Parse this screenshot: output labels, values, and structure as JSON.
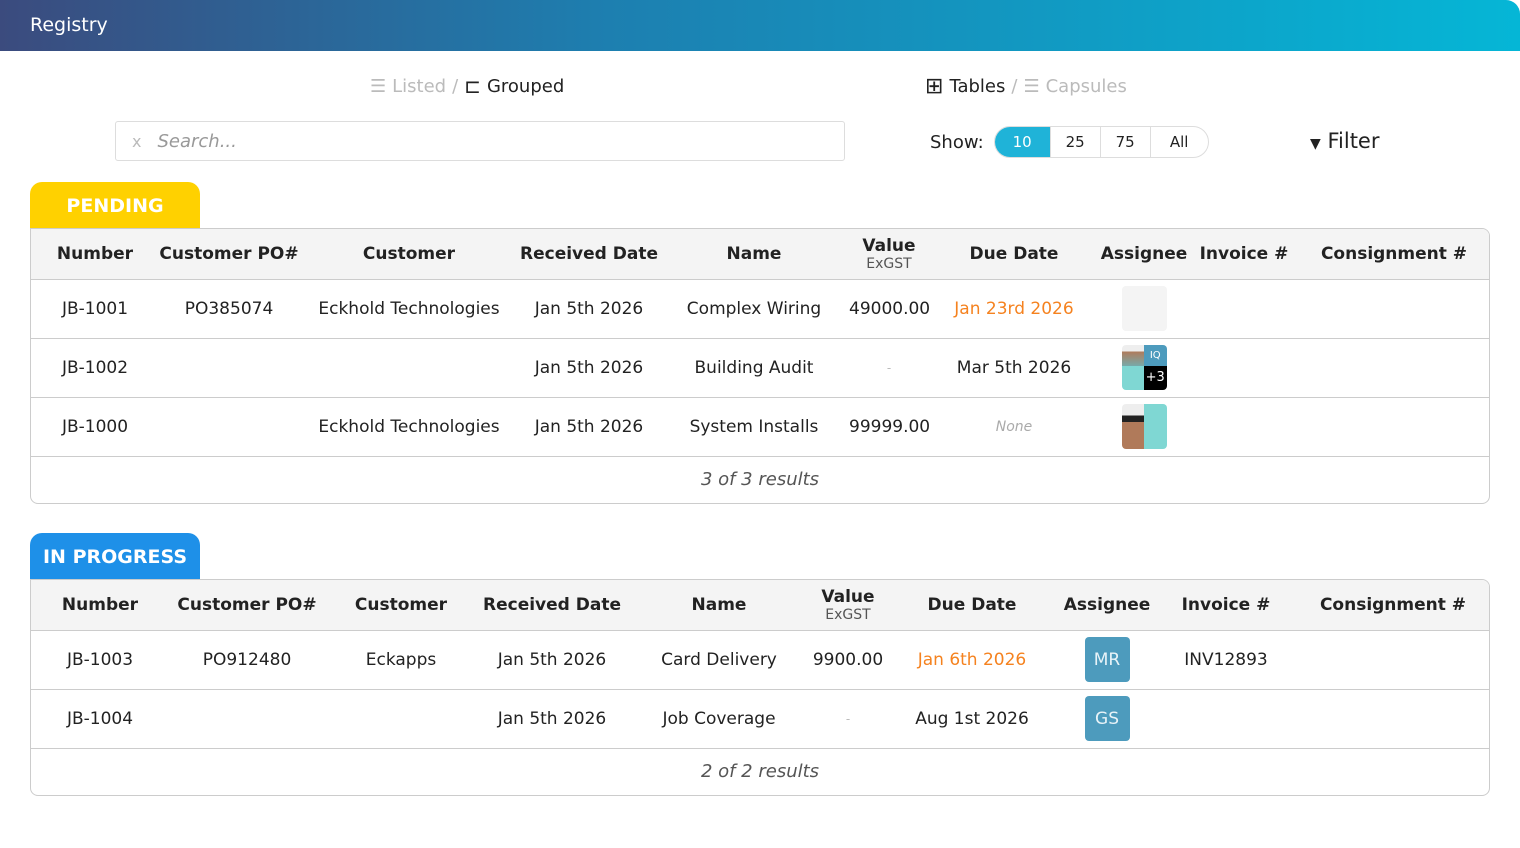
{
  "header": {
    "title": "Registry"
  },
  "view": {
    "listed": "Listed",
    "grouped": "Grouped",
    "tables": "Tables",
    "capsules": "Capsules",
    "sep": "/"
  },
  "search": {
    "clear": "x",
    "placeholder": "Search..."
  },
  "show": {
    "label": "Show:",
    "options": [
      "10",
      "25",
      "75",
      "All"
    ],
    "selected": "10"
  },
  "filter": {
    "label": "Filter",
    "icon": "▼"
  },
  "colors": {
    "accent": "#1fb3d8",
    "pending": "#ffd100",
    "in_progress": "#1e90e8",
    "overdue": "#f5821f"
  },
  "sections": [
    {
      "label": "PENDING",
      "columns": [
        "Number",
        "Customer PO#",
        "Customer",
        "Received Date",
        "Name",
        "Value",
        "Due Date",
        "Assignee",
        "Invoice #",
        "Consignment #"
      ],
      "value_sub": "ExGST",
      "rows": [
        {
          "number": "JB-1001",
          "po": "PO385074",
          "customer": "Eckhold Technologies",
          "received": "Jan 5th 2026",
          "name": "Complex Wiring",
          "value": "49000.00",
          "due": "Jan 23rd 2026",
          "invoice": "",
          "consignment": ""
        },
        {
          "number": "JB-1002",
          "po": "",
          "customer": "",
          "received": "Jan 5th 2026",
          "name": "Building Audit",
          "value": "-",
          "due": "Mar 5th 2026",
          "assignee_initials": "IQ",
          "assignee_more": "+3",
          "invoice": "",
          "consignment": ""
        },
        {
          "number": "JB-1000",
          "po": "",
          "customer": "Eckhold Technologies",
          "received": "Jan 5th 2026",
          "name": "System Installs",
          "value": "99999.00",
          "due": "None",
          "invoice": "",
          "consignment": ""
        }
      ],
      "footer": "3 of 3 results"
    },
    {
      "label": "IN PROGRESS",
      "columns": [
        "Number",
        "Customer PO#",
        "Customer",
        "Received Date",
        "Name",
        "Value",
        "Due Date",
        "Assignee",
        "Invoice #",
        "Consignment #"
      ],
      "value_sub": "ExGST",
      "rows": [
        {
          "number": "JB-1003",
          "po": "PO912480",
          "customer": "Eckapps",
          "received": "Jan 5th 2026",
          "name": "Card Delivery",
          "value": "9900.00",
          "due": "Jan 6th 2026",
          "assignee": "MR",
          "invoice": "INV12893",
          "consignment": ""
        },
        {
          "number": "JB-1004",
          "po": "",
          "customer": "",
          "received": "Jan 5th 2026",
          "name": "Job Coverage",
          "value": "-",
          "due": "Aug 1st 2026",
          "assignee": "GS",
          "invoice": "",
          "consignment": ""
        }
      ],
      "footer": "2 of 2 results"
    }
  ]
}
